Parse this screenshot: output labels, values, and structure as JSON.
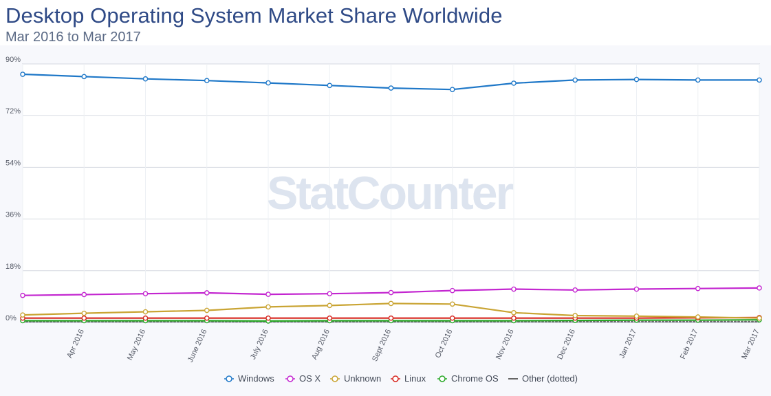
{
  "header": {
    "title": "Desktop Operating System Market Share Worldwide",
    "subtitle": "Mar 2016 to Mar 2017"
  },
  "watermark": {
    "text": "StatCounter"
  },
  "chart_data": {
    "type": "line",
    "categories": [
      "",
      "Apr 2016",
      "May 2016",
      "June 2016",
      "July 2016",
      "Aug 2016",
      "Sept 2016",
      "Oct 2016",
      "Nov 2016",
      "Dec 2016",
      "Jan 2017",
      "Feb 2017",
      "Mar 2017"
    ],
    "ylim": [
      0,
      90
    ],
    "yticks": [
      0,
      18,
      36,
      54,
      72,
      90
    ],
    "ytick_labels": [
      "0%",
      "18%",
      "36%",
      "54%",
      "72%",
      "90%"
    ],
    "grid": true,
    "legend_position": "bottom",
    "series": [
      {
        "name": "Windows",
        "color": "#1f78c8",
        "values": [
          86.4,
          85.6,
          84.8,
          84.2,
          83.4,
          82.5,
          81.6,
          81.1,
          83.3,
          84.4,
          84.6,
          84.4,
          84.4
        ]
      },
      {
        "name": "OS X",
        "color": "#c326d0",
        "values": [
          9.4,
          9.7,
          10.0,
          10.3,
          9.8,
          10.0,
          10.4,
          11.1,
          11.6,
          11.3,
          11.6,
          11.8,
          12.0
        ]
      },
      {
        "name": "Unknown",
        "color": "#c9a433",
        "values": [
          2.6,
          3.2,
          3.7,
          4.2,
          5.4,
          5.9,
          6.6,
          6.4,
          3.4,
          2.4,
          2.2,
          1.9,
          1.5
        ]
      },
      {
        "name": "Linux",
        "color": "#d7261f",
        "values": [
          1.5,
          1.5,
          1.5,
          1.5,
          1.5,
          1.5,
          1.5,
          1.5,
          1.5,
          1.5,
          1.5,
          1.6,
          1.7
        ]
      },
      {
        "name": "Chrome OS",
        "color": "#29a827",
        "values": [
          0.6,
          0.6,
          0.6,
          0.6,
          0.5,
          0.6,
          0.6,
          0.6,
          0.6,
          0.7,
          0.8,
          0.8,
          0.9
        ]
      },
      {
        "name": "Other (dotted)",
        "color": "#666666",
        "values": [
          0.3,
          0.3,
          0.3,
          0.3,
          0.3,
          0.3,
          0.3,
          0.3,
          0.3,
          0.3,
          0.3,
          0.3,
          0.3
        ],
        "dotted": true
      }
    ]
  }
}
